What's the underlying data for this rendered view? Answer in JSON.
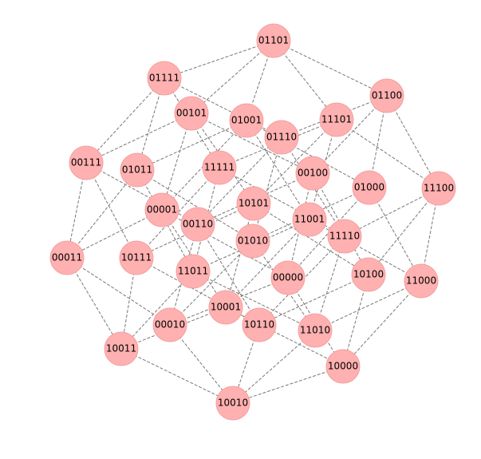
{
  "nodes": [
    {
      "label": "01101"
    },
    {
      "label": "01111"
    },
    {
      "label": "01100"
    },
    {
      "label": "00101"
    },
    {
      "label": "01001"
    },
    {
      "label": "11101"
    },
    {
      "label": "01110"
    },
    {
      "label": "00111"
    },
    {
      "label": "01011"
    },
    {
      "label": "11111"
    },
    {
      "label": "00100"
    },
    {
      "label": "01000"
    },
    {
      "label": "11100"
    },
    {
      "label": "10101"
    },
    {
      "label": "00001"
    },
    {
      "label": "00110"
    },
    {
      "label": "11001"
    },
    {
      "label": "11110"
    },
    {
      "label": "00011"
    },
    {
      "label": "10111"
    },
    {
      "label": "01010"
    },
    {
      "label": "11011"
    },
    {
      "label": "00000"
    },
    {
      "label": "10100"
    },
    {
      "label": "11000"
    },
    {
      "label": "10001"
    },
    {
      "label": "00010"
    },
    {
      "label": "10110"
    },
    {
      "label": "11010"
    },
    {
      "label": "10011"
    },
    {
      "label": "10000"
    },
    {
      "label": "10010"
    }
  ]
}
